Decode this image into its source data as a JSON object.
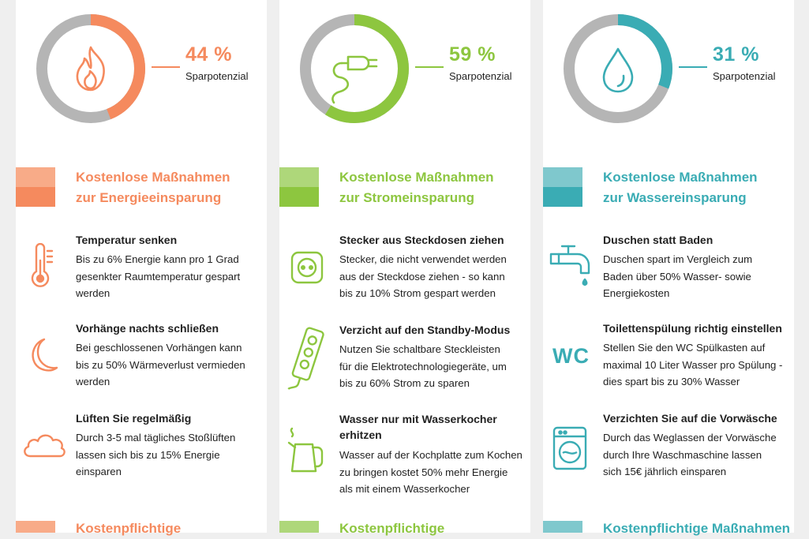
{
  "columns": [
    {
      "color": "#f58a5e",
      "color_light": "#f8ab88",
      "percent_value": 44,
      "percent_text": "44 %",
      "percent_label": "Sparpotenzial",
      "icon": "flame-icon",
      "free_title_1": "Kostenlose Maßnahmen",
      "free_title_2": "zur Energieeinsparung",
      "items": [
        {
          "icon": "thermometer-icon",
          "heading": "Temperatur senken",
          "lines": [
            "Bis zu 6% Energie kann pro 1 Grad",
            "gesenkter Raumtemperatur gespart",
            "werden"
          ]
        },
        {
          "icon": "moon-icon",
          "heading": "Vorhänge nachts schließen",
          "lines": [
            "Bei geschlossenen Vorhängen kann",
            "bis zu 50% Wärmeverlust vermieden",
            "werden"
          ]
        },
        {
          "icon": "cloud-icon",
          "heading": "Lüften Sie regelmäßig",
          "lines": [
            "Durch 3-5 mal tägliches Stoßlüften",
            "lassen sich bis zu 15% Energie",
            "einsparen"
          ]
        }
      ],
      "paid_title": "Kostenpflichtige"
    },
    {
      "color": "#8dc63f",
      "color_light": "#aed77a",
      "percent_value": 59,
      "percent_text": "59 %",
      "percent_label": "Sparpotenzial",
      "icon": "plug-icon",
      "free_title_1": "Kostenlose Maßnahmen",
      "free_title_2": "zur Stromeinsparung",
      "items": [
        {
          "icon": "socket-icon",
          "heading": "Stecker aus Steckdosen ziehen",
          "lines": [
            "Stecker, die nicht verwendet werden",
            "aus der Steckdose ziehen - so kann",
            "bis zu 10% Strom gespart werden"
          ]
        },
        {
          "icon": "power-strip-icon",
          "heading": "Verzicht auf den Standby-Modus",
          "lines": [
            "Nutzen Sie  schaltbare Steckleisten",
            "für die Elektrotechnologiegeräte, um",
            "bis zu 60% Strom zu sparen"
          ]
        },
        {
          "icon": "kettle-icon",
          "heading": "Wasser nur mit Wasserkocher",
          "heading2": "erhitzen",
          "lines": [
            "Wasser auf der Kochplatte zum Kochen",
            "zu bringen kostet 50% mehr Energie",
            "als mit einem Wasserkocher"
          ]
        }
      ],
      "paid_title": "Kostenpflichtige"
    },
    {
      "color": "#3aacb4",
      "color_light": "#7fc8cd",
      "percent_value": 31,
      "percent_text": "31 %",
      "percent_label": "Sparpotenzial",
      "icon": "water-drop-icon",
      "free_title_1": "Kostenlose Maßnahmen",
      "free_title_2": "zur Wassereinsparung",
      "items": [
        {
          "icon": "faucet-icon",
          "heading": "Duschen statt Baden",
          "lines": [
            "Duschen spart im Vergleich zum",
            "Baden über 50% Wasser- sowie",
            "Energiekosten"
          ]
        },
        {
          "icon": "wc-icon",
          "icon_text": "WC",
          "heading": "Toilettenspülung richtig einstellen",
          "lines": [
            "Stellen Sie den WC Spülkasten auf",
            "maximal 10 Liter Wasser pro Spülung -",
            "dies spart bis zu 30% Wasser"
          ]
        },
        {
          "icon": "washing-machine-icon",
          "heading": "Verzichten Sie auf die Vorwäsche",
          "lines": [
            "Durch das Weglassen der Vorwäsche",
            "durch Ihre Waschmaschine lassen",
            "sich 15€ jährlich einsparen"
          ]
        }
      ],
      "paid_title": "Kostenpflichtige Maßnahmen"
    }
  ]
}
